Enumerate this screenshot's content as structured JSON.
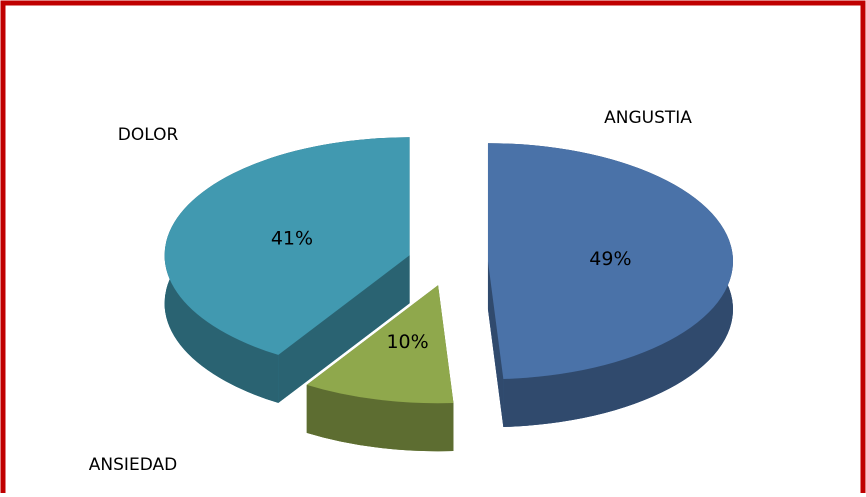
{
  "chart_data": {
    "type": "pie",
    "categories": [
      "ANGUSTIA",
      "ANSIEDAD",
      "DOLOR"
    ],
    "values": [
      49,
      10,
      41
    ],
    "value_labels": [
      "49%",
      "10%",
      "41%"
    ],
    "colors": [
      "#4a72a8",
      "#8fa84c",
      "#4199b0"
    ]
  }
}
